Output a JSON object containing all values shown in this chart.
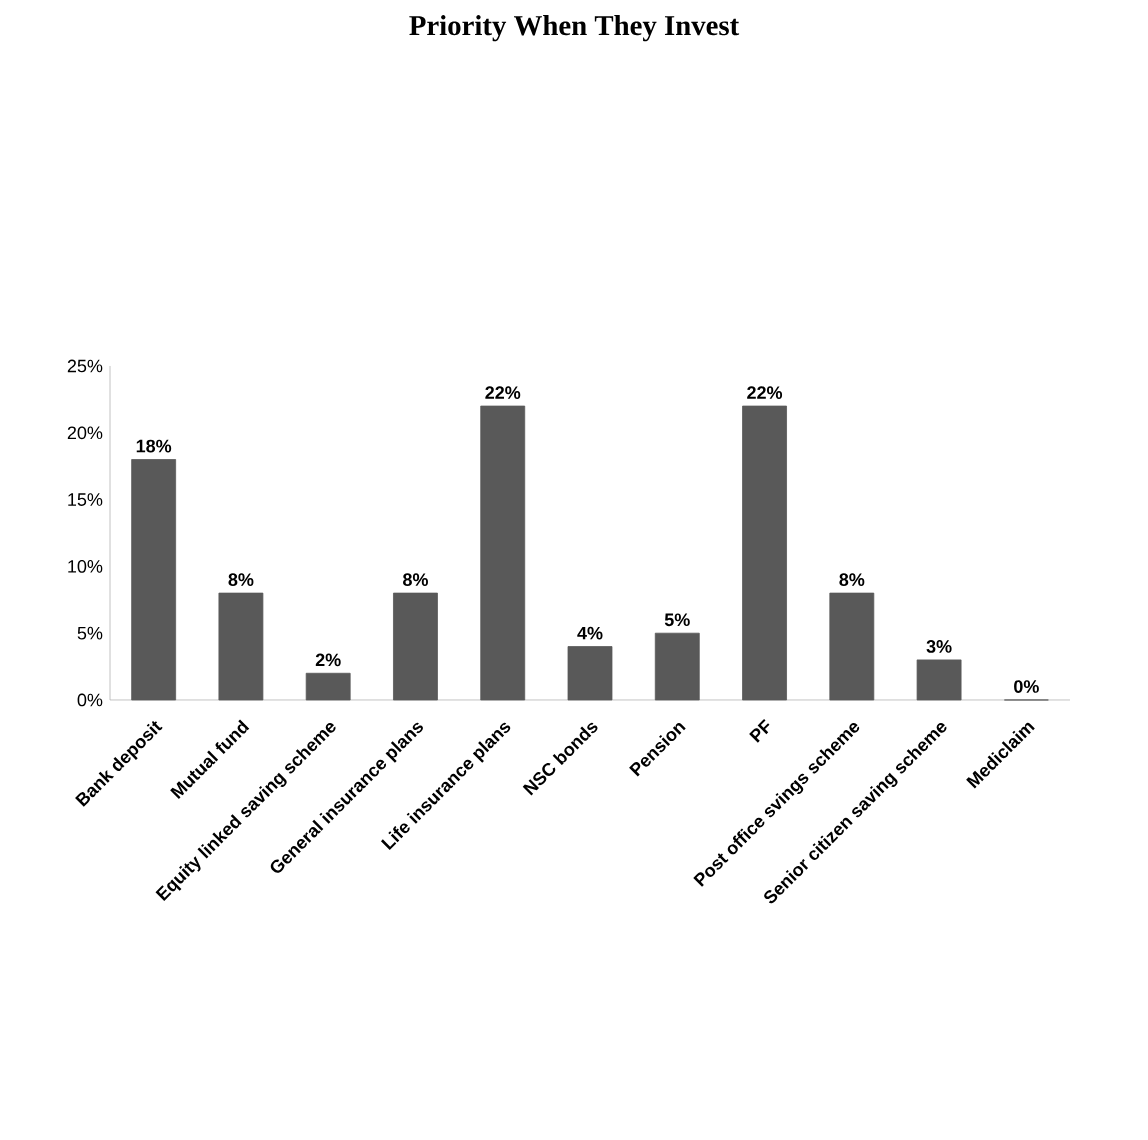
{
  "chart_data": {
    "type": "bar",
    "title": "Priority When They Invest",
    "categories": [
      "Bank deposit",
      "Mutual fund",
      "Equity linked saving scheme",
      "General insurance plans",
      "Life insurance plans",
      "NSC bonds",
      "Pension",
      "PF",
      "Post office svings scheme",
      "Senior citizen saving scheme",
      "Mediclaim"
    ],
    "values": [
      18,
      8,
      2,
      8,
      22,
      4,
      5,
      22,
      8,
      3,
      0
    ],
    "value_labels": [
      "18%",
      "8%",
      "2%",
      "8%",
      "22%",
      "4%",
      "5%",
      "22%",
      "8%",
      "3%",
      "0%"
    ],
    "color": "#595959",
    "ylim": [
      0,
      25
    ],
    "yticks": [
      {
        "value": 0,
        "label": "0%"
      },
      {
        "value": 5,
        "label": "5%"
      },
      {
        "value": 10,
        "label": "10%"
      },
      {
        "value": 15,
        "label": "15%"
      },
      {
        "value": 20,
        "label": "20%"
      },
      {
        "value": 25,
        "label": "25%"
      }
    ],
    "grid": false
  }
}
